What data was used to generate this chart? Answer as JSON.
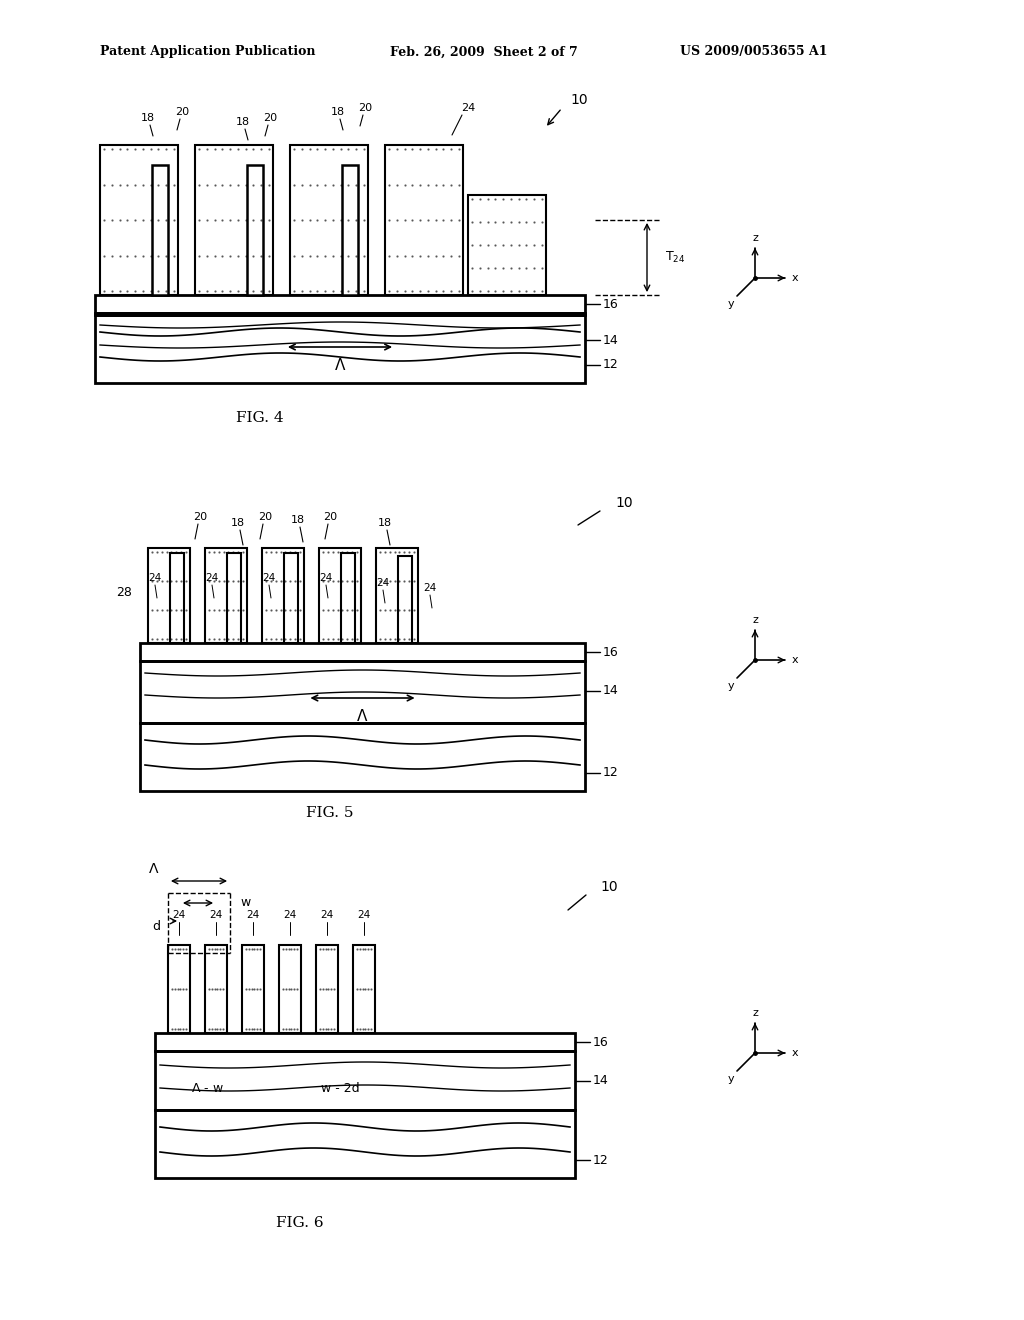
{
  "page_title_left": "Patent Application Publication",
  "page_title_mid": "Feb. 26, 2009  Sheet 2 of 7",
  "page_title_right": "US 2009/0053655 A1",
  "fig4_label": "FIG. 4",
  "fig5_label": "FIG. 5",
  "fig6_label": "FIG. 6",
  "background_color": "#ffffff",
  "line_color": "#000000",
  "text_color": "#000000"
}
